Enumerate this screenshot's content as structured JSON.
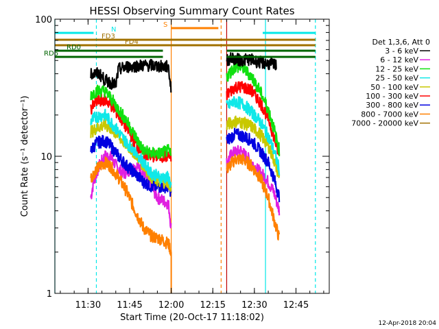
{
  "chart_data": {
    "type": "line",
    "title": "HESSI Observing Summary Count Rates",
    "xlabel": "Start Time (20-Oct-17 11:18:02)",
    "ylabel": "Count Rate (s⁻¹ detector⁻¹)",
    "yscale": "log",
    "xlim": [
      "11:18:02",
      "12:57:00"
    ],
    "ylim": [
      1,
      100
    ],
    "x_ticks": [
      "11:30",
      "11:45",
      "12:00",
      "12:15",
      "12:30",
      "12:45"
    ],
    "y_ticks": [
      "1",
      "10",
      "100"
    ],
    "legend_title": "Det 1,3,6, Att 0",
    "legend_placement": "right",
    "timestamp": "12-Apr-2018 20:04",
    "observation_windows": [
      [
        "11:31:00",
        "12:00:00"
      ],
      [
        "12:21:00",
        "12:39:00"
      ]
    ],
    "series": [
      {
        "name": "3 - 6 keV",
        "color": "#000000",
        "segments": [
          [
            [
              "11:31",
              40
            ],
            [
              "11:34",
              40
            ],
            [
              "11:36",
              36
            ],
            [
              "11:40",
              33
            ],
            [
              "11:41",
              43
            ],
            [
              "11:44",
              45
            ],
            [
              "11:50",
              46
            ],
            [
              "11:53",
              46
            ],
            [
              "11:57",
              45
            ],
            [
              "11:59",
              45
            ],
            [
              "12:00",
              30
            ]
          ],
          [
            [
              "12:20",
              50
            ],
            [
              "12:22",
              52
            ],
            [
              "12:25",
              50
            ],
            [
              "12:28",
              51
            ],
            [
              "12:31",
              49
            ],
            [
              "12:33",
              48
            ],
            [
              "12:36",
              47
            ],
            [
              "12:38",
              46
            ]
          ]
        ]
      },
      {
        "name": "6 - 12 keV",
        "color": "#e020e0",
        "segments": [
          [
            [
              "11:31",
              5
            ],
            [
              "11:32",
              6.5
            ],
            [
              "11:34",
              8.5
            ],
            [
              "11:36",
              10
            ],
            [
              "11:38",
              10
            ],
            [
              "11:41",
              8
            ],
            [
              "11:43",
              7.5
            ],
            [
              "11:45",
              8
            ],
            [
              "11:48",
              8.5
            ],
            [
              "11:52",
              6.5
            ],
            [
              "11:55",
              5
            ],
            [
              "11:59",
              4.5
            ],
            [
              "12:00",
              3
            ]
          ],
          [
            [
              "12:20",
              9
            ],
            [
              "12:22",
              10.5
            ],
            [
              "12:25",
              11
            ],
            [
              "12:28",
              9.5
            ],
            [
              "12:31",
              8
            ],
            [
              "12:34",
              7
            ],
            [
              "12:37",
              5.5
            ],
            [
              "12:39",
              4
            ]
          ]
        ]
      },
      {
        "name": "12 - 25 keV",
        "color": "#10e010",
        "segments": [
          [
            [
              "11:31",
              28
            ],
            [
              "11:33",
              30
            ],
            [
              "11:36",
              30
            ],
            [
              "11:38",
              27
            ],
            [
              "11:41",
              22
            ],
            [
              "11:44",
              18
            ],
            [
              "11:47",
              14
            ],
            [
              "11:50",
              11
            ],
            [
              "11:53",
              10.5
            ],
            [
              "11:56",
              10.5
            ],
            [
              "11:59",
              11
            ],
            [
              "12:00",
              10
            ]
          ],
          [
            [
              "12:20",
              38
            ],
            [
              "12:23",
              45
            ],
            [
              "12:26",
              44
            ],
            [
              "12:29",
              38
            ],
            [
              "12:32",
              30
            ],
            [
              "12:35",
              22
            ],
            [
              "12:37",
              16
            ],
            [
              "12:39",
              11
            ]
          ]
        ]
      },
      {
        "name": "25 - 50 keV",
        "color": "#10e8e8",
        "segments": [
          [
            [
              "11:31",
              18
            ],
            [
              "11:33",
              19.5
            ],
            [
              "11:36",
              20
            ],
            [
              "11:38",
              18
            ],
            [
              "11:41",
              15
            ],
            [
              "11:44",
              12.5
            ],
            [
              "11:47",
              11
            ],
            [
              "11:50",
              9
            ],
            [
              "11:53",
              7.5
            ],
            [
              "11:56",
              7
            ],
            [
              "11:59",
              7
            ],
            [
              "12:00",
              6
            ]
          ],
          [
            [
              "12:20",
              23
            ],
            [
              "12:23",
              25
            ],
            [
              "12:26",
              24
            ],
            [
              "12:29",
              21
            ],
            [
              "12:32",
              18
            ],
            [
              "12:35",
              14
            ],
            [
              "12:37",
              11
            ],
            [
              "12:39",
              8
            ]
          ]
        ]
      },
      {
        "name": "50 - 100 keV",
        "color": "#c8c800",
        "segments": [
          [
            [
              "11:31",
              15
            ],
            [
              "11:33",
              16
            ],
            [
              "11:36",
              17
            ],
            [
              "11:38",
              16
            ],
            [
              "11:41",
              14
            ],
            [
              "11:44",
              12
            ],
            [
              "11:47",
              10.5
            ],
            [
              "11:50",
              8.5
            ],
            [
              "11:53",
              7
            ],
            [
              "11:56",
              6.5
            ],
            [
              "11:59",
              6.5
            ],
            [
              "12:00",
              5.5
            ]
          ],
          [
            [
              "12:20",
              17
            ],
            [
              "12:23",
              18
            ],
            [
              "12:26",
              17.5
            ],
            [
              "12:29",
              16.5
            ],
            [
              "12:32",
              14.5
            ],
            [
              "12:35",
              12
            ],
            [
              "12:37",
              9.5
            ],
            [
              "12:39",
              7
            ]
          ]
        ]
      },
      {
        "name": "100 - 300 keV",
        "color": "#ff0000",
        "segments": [
          [
            [
              "11:31",
              22
            ],
            [
              "11:33",
              25
            ],
            [
              "11:36",
              26
            ],
            [
              "11:38",
              24
            ],
            [
              "11:41",
              20
            ],
            [
              "11:44",
              16
            ],
            [
              "11:47",
              12.5
            ],
            [
              "11:50",
              10.5
            ],
            [
              "11:53",
              10
            ],
            [
              "11:56",
              10
            ],
            [
              "11:59",
              10
            ],
            [
              "12:00",
              9.5
            ]
          ],
          [
            [
              "12:20",
              28
            ],
            [
              "12:23",
              32
            ],
            [
              "12:26",
              32
            ],
            [
              "12:29",
              30
            ],
            [
              "12:32",
              25
            ],
            [
              "12:35",
              19
            ],
            [
              "12:37",
              14
            ],
            [
              "12:39",
              10
            ]
          ]
        ]
      },
      {
        "name": "300 - 800 keV",
        "color": "#0000e0",
        "segments": [
          [
            [
              "11:31",
              11
            ],
            [
              "11:33",
              12.5
            ],
            [
              "11:36",
              13
            ],
            [
              "11:38",
              12
            ],
            [
              "11:41",
              10
            ],
            [
              "11:44",
              8.5
            ],
            [
              "11:47",
              7.5
            ],
            [
              "11:50",
              6.5
            ],
            [
              "11:53",
              6
            ],
            [
              "11:56",
              6
            ],
            [
              "11:59",
              6
            ],
            [
              "12:00",
              5.5
            ]
          ],
          [
            [
              "12:20",
              13
            ],
            [
              "12:23",
              14.5
            ],
            [
              "12:26",
              14
            ],
            [
              "12:29",
              13
            ],
            [
              "12:32",
              11
            ],
            [
              "12:35",
              9
            ],
            [
              "12:37",
              7
            ],
            [
              "12:39",
              5
            ]
          ]
        ]
      },
      {
        "name": "800 - 7000 keV",
        "color": "#ff8000",
        "segments": [
          [
            [
              "11:31",
              7
            ],
            [
              "11:33",
              8
            ],
            [
              "11:36",
              9
            ],
            [
              "11:38",
              8.5
            ],
            [
              "11:41",
              7
            ],
            [
              "11:44",
              5.5
            ],
            [
              "11:47",
              4
            ],
            [
              "11:50",
              3
            ],
            [
              "11:53",
              2.6
            ],
            [
              "11:56",
              2.5
            ],
            [
              "11:59",
              2.3
            ],
            [
              "12:00",
              2
            ]
          ],
          [
            [
              "12:20",
              8
            ],
            [
              "12:23",
              9.5
            ],
            [
              "12:26",
              9.5
            ],
            [
              "12:29",
              8.5
            ],
            [
              "12:32",
              7
            ],
            [
              "12:35",
              5
            ],
            [
              "12:37",
              3.5
            ],
            [
              "12:39",
              2.5
            ]
          ]
        ]
      },
      {
        "name": "7000 - 20000 keV",
        "color": "#a07000",
        "segments": []
      }
    ],
    "flag_bars": [
      {
        "label": "N",
        "color": "#00e8e8",
        "segments": [
          [
            "11:18",
            "11:32"
          ],
          [
            "12:33",
            "12:52"
          ]
        ]
      },
      {
        "label": "S",
        "color": "#ff8000",
        "segments": [
          [
            "12:00",
            "12:17"
          ]
        ]
      },
      {
        "label": "FD3",
        "color": "#a07000",
        "segments": [
          [
            "11:18",
            "12:52"
          ]
        ]
      },
      {
        "label": "FD4",
        "color": "#a07000",
        "segments": [
          [
            "11:18",
            "12:52"
          ]
        ]
      },
      {
        "label": "RD0",
        "color": "#006400",
        "segments": [
          [
            "11:18",
            "11:57"
          ],
          [
            "12:20",
            "12:52"
          ]
        ]
      },
      {
        "label": "RD6",
        "color": "#006400",
        "segments": [
          [
            "11:18",
            "11:57"
          ],
          [
            "12:20",
            "12:52"
          ]
        ]
      }
    ],
    "vertical_lines": [
      {
        "time": "11:18:02",
        "color": "#00e8e8",
        "style": "solid"
      },
      {
        "time": "11:33",
        "color": "#00e8e8",
        "style": "dashed"
      },
      {
        "time": "12:00",
        "color": "#ff8000",
        "style": "solid"
      },
      {
        "time": "12:18",
        "color": "#ff8000",
        "style": "dashed"
      },
      {
        "time": "12:20",
        "color": "#c00000",
        "style": "solid"
      },
      {
        "time": "12:34",
        "color": "#00e8e8",
        "style": "solid"
      },
      {
        "time": "12:52",
        "color": "#00e8e8",
        "style": "dashed"
      }
    ]
  }
}
